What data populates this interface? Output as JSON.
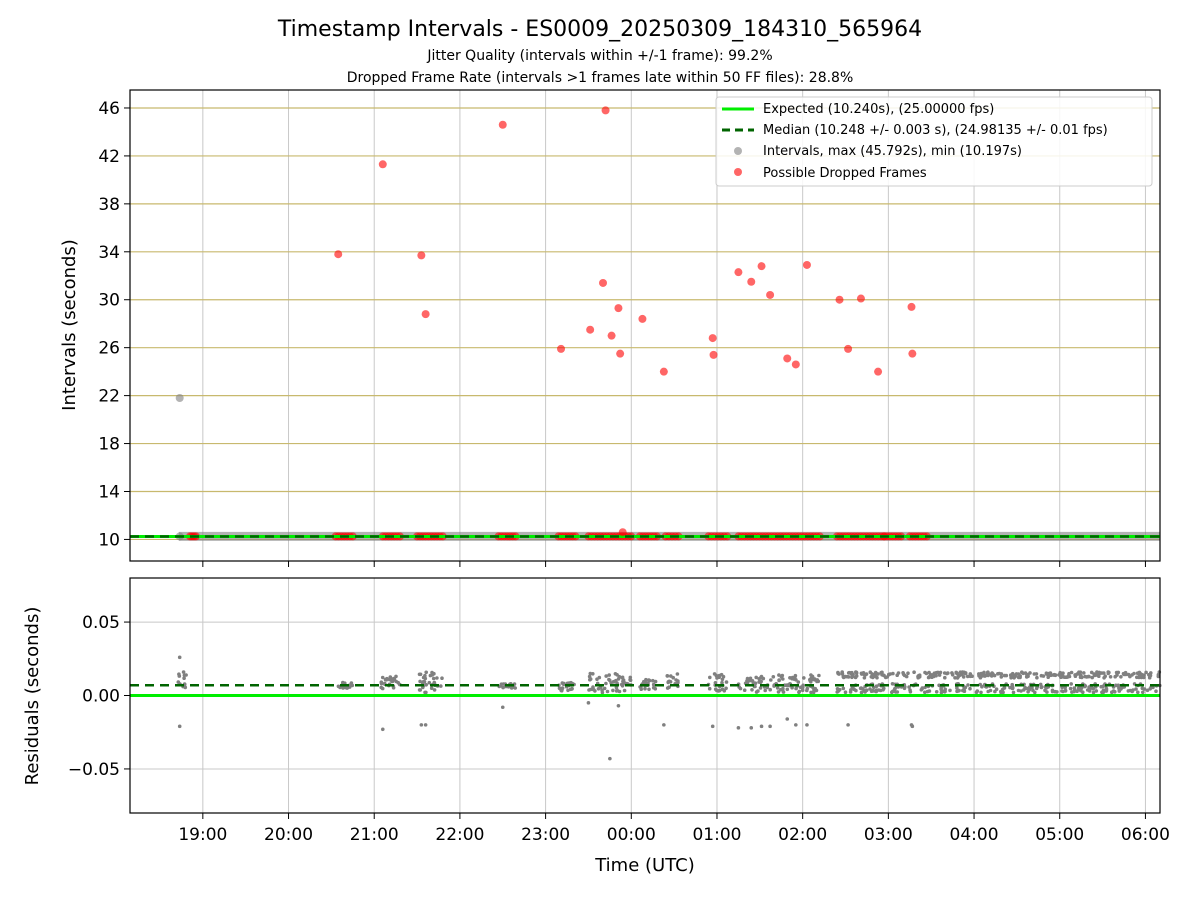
{
  "title": "Timestamp Intervals - ES0009_20250309_184310_565964",
  "subtitle1": "Jitter Quality (intervals within +/-1 frame): 99.2%",
  "subtitle2": "Dropped Frame Rate (intervals >1 frames late within 50 FF files): 28.8%",
  "colors": {
    "expected": "#00ee00",
    "median": "#006400",
    "intervals": "#808080",
    "dropped": "#ff0000",
    "hgrid_top": "#c8b96e",
    "grid": "#c8c8c8"
  },
  "legend": {
    "placement": "top-right",
    "expected": "Expected (10.240s), (25.00000 fps)",
    "median": "Median (10.248 +/- 0.003 s), (24.98135 +/- 0.01 fps)",
    "intervals": "Intervals, max (45.792s), min (10.197s)",
    "dropped": "Possible Dropped Frames"
  },
  "chart_data": [
    {
      "type": "scatter",
      "panel": "intervals",
      "ylabel": "Intervals (seconds)",
      "xlabel": "",
      "xlim_hours": [
        18.15,
        30.17
      ],
      "ylim": [
        8.2,
        47.5
      ],
      "yticks": [
        10,
        14,
        18,
        22,
        26,
        30,
        34,
        38,
        42,
        46
      ],
      "grid": true,
      "lines": [
        {
          "name": "Expected (10.240s), (25.00000 fps)",
          "y": 10.24,
          "style": "solid"
        },
        {
          "name": "Median (10.248 +/- 0.003 s), (24.98135 +/- 0.01 fps)",
          "y": 10.248,
          "style": "dashed"
        }
      ],
      "series": [
        {
          "name": "Intervals, max (45.792s), min (10.197s)",
          "points": [
            [
              18.73,
              21.8
            ],
            [
              18.73,
              10.25
            ]
          ],
          "baseline_band": {
            "y": 10.25,
            "x_from_hours": 18.72,
            "x_to_hours": 30.17
          }
        },
        {
          "name": "Possible Dropped Frames",
          "points": [
            [
              20.58,
              33.8
            ],
            [
              21.1,
              41.3
            ],
            [
              21.55,
              33.7
            ],
            [
              21.6,
              28.8
            ],
            [
              22.5,
              44.6
            ],
            [
              23.18,
              25.9
            ],
            [
              23.52,
              27.5
            ],
            [
              23.67,
              31.4
            ],
            [
              23.7,
              45.8
            ],
            [
              23.77,
              27.0
            ],
            [
              23.85,
              29.3
            ],
            [
              23.87,
              25.5
            ],
            [
              23.9,
              10.6
            ],
            [
              24.13,
              28.4
            ],
            [
              24.38,
              24.0
            ],
            [
              24.95,
              26.8
            ],
            [
              24.96,
              25.4
            ],
            [
              25.25,
              32.3
            ],
            [
              25.4,
              31.5
            ],
            [
              25.52,
              32.8
            ],
            [
              25.62,
              30.4
            ],
            [
              25.82,
              25.1
            ],
            [
              25.92,
              24.6
            ],
            [
              26.05,
              32.9
            ],
            [
              26.43,
              30.0
            ],
            [
              26.53,
              25.9
            ],
            [
              26.68,
              30.1
            ],
            [
              26.88,
              24.0
            ],
            [
              27.27,
              29.4
            ],
            [
              27.28,
              25.5
            ]
          ],
          "baseline_clusters_hours": [
            [
              18.85,
              18.92
            ],
            [
              20.55,
              20.75
            ],
            [
              21.1,
              21.3
            ],
            [
              21.5,
              21.8
            ],
            [
              22.45,
              22.65
            ],
            [
              23.15,
              23.35
            ],
            [
              23.5,
              24.0
            ],
            [
              24.1,
              24.3
            ],
            [
              24.4,
              24.55
            ],
            [
              24.9,
              25.12
            ],
            [
              25.25,
              26.2
            ],
            [
              26.4,
              26.95
            ],
            [
              26.95,
              27.15
            ],
            [
              27.25,
              27.45
            ]
          ],
          "baseline_y": 10.25
        }
      ]
    },
    {
      "type": "scatter",
      "panel": "residuals",
      "ylabel": "Residuals (seconds)",
      "xlabel": "Time (UTC)",
      "xlim_hours": [
        18.15,
        30.17
      ],
      "ylim": [
        -0.08,
        0.08
      ],
      "yticks": [
        0.05,
        0.0,
        -0.05
      ],
      "ytick_labels": [
        "0.05",
        "0.00",
        "−0.05"
      ],
      "xticks_hours": [
        19,
        20,
        21,
        22,
        23,
        24,
        25,
        26,
        27,
        28,
        29,
        30
      ],
      "xtick_labels": [
        "19:00",
        "20:00",
        "21:00",
        "22:00",
        "23:00",
        "00:00",
        "01:00",
        "02:00",
        "03:00",
        "04:00",
        "05:00",
        "06:00"
      ],
      "grid": true,
      "lines": [
        {
          "name": "Expected",
          "y": 0.0,
          "style": "solid"
        },
        {
          "name": "Median",
          "y": 0.007,
          "style": "dashed"
        }
      ],
      "series": [
        {
          "name": "Residuals",
          "outliers": [
            [
              18.73,
              0.026
            ],
            [
              18.73,
              -0.021
            ],
            [
              21.1,
              -0.023
            ],
            [
              21.55,
              -0.02
            ],
            [
              21.6,
              -0.02
            ],
            [
              22.5,
              -0.008
            ],
            [
              23.5,
              -0.005
            ],
            [
              23.75,
              -0.043
            ],
            [
              23.85,
              -0.007
            ],
            [
              24.38,
              -0.02
            ],
            [
              24.95,
              -0.021
            ],
            [
              25.25,
              -0.022
            ],
            [
              25.4,
              -0.022
            ],
            [
              25.52,
              -0.021
            ],
            [
              25.62,
              -0.021
            ],
            [
              25.82,
              -0.016
            ],
            [
              25.92,
              -0.02
            ],
            [
              26.05,
              -0.02
            ],
            [
              26.53,
              -0.02
            ],
            [
              27.27,
              -0.02
            ],
            [
              27.28,
              -0.021
            ]
          ],
          "clusters": [
            [
              18.7,
              18.82,
              0.003,
              0.016
            ],
            [
              20.55,
              20.75,
              0.005,
              0.009
            ],
            [
              21.08,
              21.3,
              0.002,
              0.013
            ],
            [
              21.5,
              21.8,
              0.002,
              0.016
            ],
            [
              22.45,
              22.65,
              0.005,
              0.008
            ],
            [
              23.15,
              23.35,
              0.003,
              0.009
            ],
            [
              23.5,
              24.0,
              0.002,
              0.015
            ],
            [
              24.1,
              24.3,
              0.004,
              0.011
            ],
            [
              24.4,
              24.55,
              0.005,
              0.015
            ],
            [
              24.9,
              25.12,
              0.003,
              0.015
            ],
            [
              25.25,
              26.2,
              0.002,
              0.014
            ],
            [
              26.4,
              30.17,
              0.002,
              0.016
            ]
          ]
        }
      ]
    }
  ]
}
